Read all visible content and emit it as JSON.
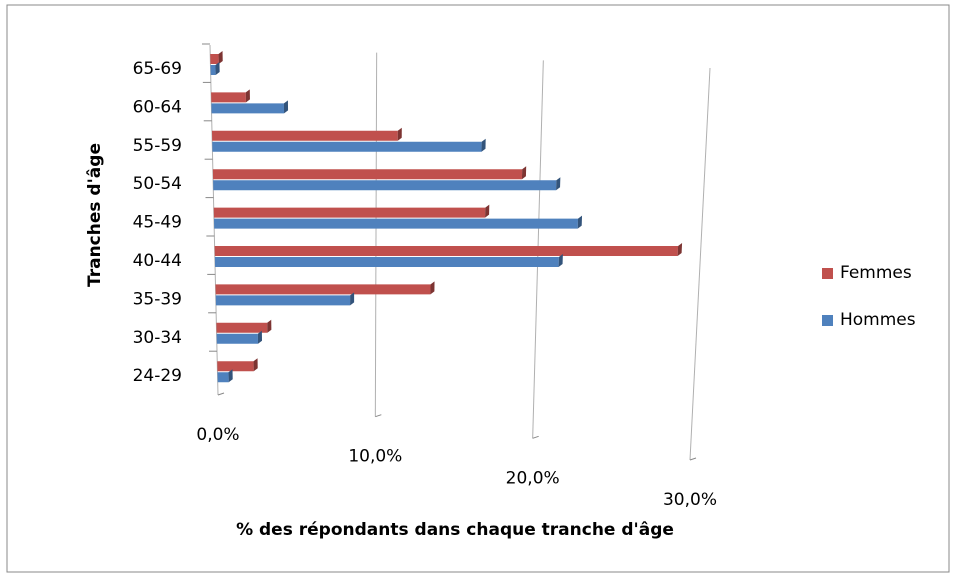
{
  "chart_data": {
    "type": "bar",
    "orientation": "horizontal",
    "x_label": "% des répondants dans chaque tranche d'âge",
    "y_label": "Tranches d'âge",
    "categories": [
      "65-69",
      "60-64",
      "55-59",
      "50-54",
      "45-49",
      "40-44",
      "35-39",
      "30-34",
      "24-29"
    ],
    "series": [
      {
        "name": "Femmes",
        "color": "#c0504d",
        "values": [
          0.5,
          2.1,
          11.3,
          18.9,
          16.7,
          28.6,
          13.4,
          3.2,
          2.3
        ]
      },
      {
        "name": "Hommes",
        "color": "#4f81bd",
        "values": [
          0.3,
          4.4,
          16.4,
          21.0,
          22.4,
          21.3,
          8.4,
          2.6,
          0.7
        ]
      }
    ],
    "xlim": [
      0,
      30
    ],
    "xticks": [
      {
        "value": 0,
        "label": "0,0%"
      },
      {
        "value": 10,
        "label": "10,0%"
      },
      {
        "value": 20,
        "label": "20,0%"
      },
      {
        "value": 30,
        "label": "30,0%"
      }
    ],
    "grid": true,
    "legend": "right"
  }
}
